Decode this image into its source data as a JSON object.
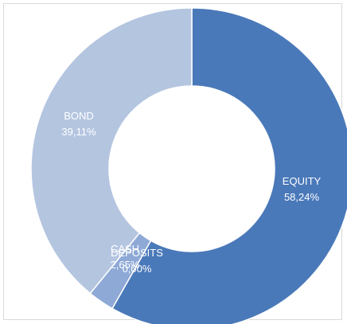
{
  "chart_data": {
    "type": "pie",
    "style": "donut",
    "start_angle_deg": 0,
    "direction": "clockwise",
    "slices": [
      {
        "name": "EQUITY",
        "value": 58.24,
        "value_label": "58,24%",
        "color": "#4a79b9"
      },
      {
        "name": "DEPOSITS",
        "value": 0.0,
        "value_label": "0,00%",
        "color": "#7a9bc9"
      },
      {
        "name": "CASH",
        "value": 2.65,
        "value_label": "2,65%",
        "color": "#8ea9d6"
      },
      {
        "name": "BOND",
        "value": 39.11,
        "value_label": "39,11%",
        "color": "#b4c5e0"
      }
    ],
    "legend": "none",
    "title": ""
  }
}
